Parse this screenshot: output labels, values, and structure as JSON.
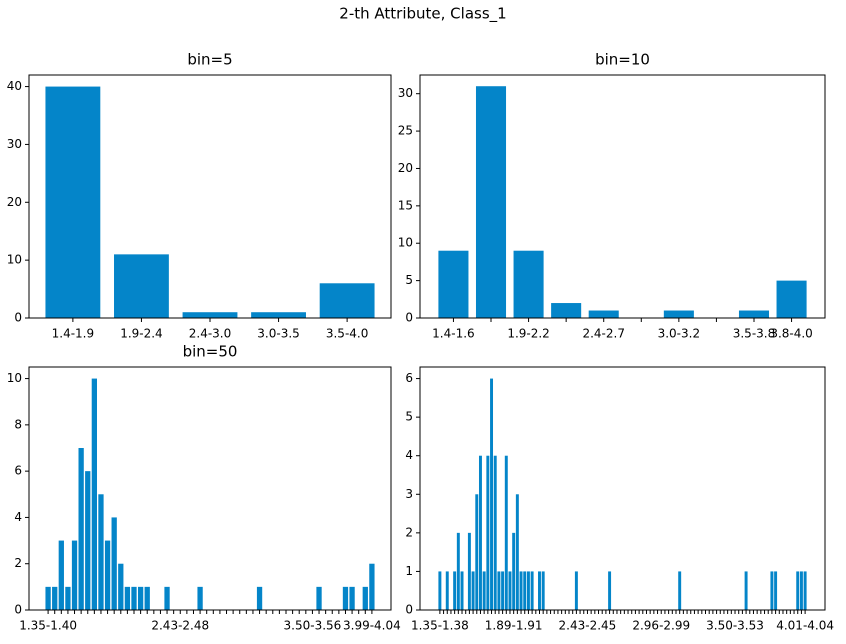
{
  "title": "2-th Attribute, Class_1",
  "chart_data": [
    {
      "type": "bar",
      "title": "bin=5",
      "color": "#0485c9",
      "categories": [
        "1.4-1.9",
        "1.9-2.4",
        "2.4-3.0",
        "3.0-3.5",
        "3.5-4.0"
      ],
      "values": [
        40,
        11,
        1,
        1,
        6
      ],
      "ylim": [
        0,
        42
      ],
      "yticks": [
        0,
        10,
        20,
        30,
        40
      ]
    },
    {
      "type": "bar",
      "title": "bin=10",
      "color": "#0485c9",
      "categories": [
        "1.4-1.6",
        null,
        "1.9-2.2",
        null,
        "2.4-2.7",
        null,
        "3.0-3.2",
        null,
        "3.5-3.8",
        "3.8-4.0"
      ],
      "values": [
        9,
        31,
        9,
        2,
        1,
        0,
        1,
        0,
        1,
        5
      ],
      "ylim": [
        0,
        32.5
      ],
      "yticks": [
        0,
        5,
        10,
        15,
        20,
        25,
        30
      ]
    },
    {
      "type": "bar",
      "title": "bin=50",
      "color": "#0485c9",
      "categories": [
        "1.35-1.40",
        null,
        null,
        null,
        null,
        null,
        null,
        null,
        null,
        null,
        null,
        null,
        null,
        null,
        null,
        null,
        null,
        null,
        null,
        null,
        "2.43-2.48",
        null,
        null,
        null,
        null,
        null,
        null,
        null,
        null,
        null,
        null,
        null,
        null,
        null,
        null,
        null,
        null,
        null,
        null,
        null,
        "3.50-3.56",
        null,
        null,
        null,
        null,
        null,
        null,
        null,
        null,
        "3.99-4.04"
      ],
      "values": [
        1,
        1,
        3,
        1,
        3,
        7,
        6,
        10,
        5,
        3,
        4,
        2,
        1,
        1,
        1,
        1,
        0,
        0,
        1,
        0,
        0,
        0,
        0,
        1,
        0,
        0,
        0,
        0,
        0,
        0,
        0,
        0,
        1,
        0,
        0,
        0,
        0,
        0,
        0,
        0,
        0,
        1,
        0,
        0,
        0,
        1,
        1,
        0,
        1,
        2
      ],
      "ylim": [
        0,
        10.5
      ],
      "yticks": [
        0,
        2,
        4,
        6,
        8,
        10
      ]
    },
    {
      "type": "bar",
      "color": "#0485c9",
      "categories": [
        "1.35-1.38",
        null,
        null,
        null,
        null,
        null,
        null,
        null,
        null,
        null,
        null,
        null,
        null,
        null,
        null,
        null,
        null,
        null,
        null,
        null,
        "1.89-1.91",
        null,
        null,
        null,
        null,
        null,
        null,
        null,
        null,
        null,
        null,
        null,
        null,
        null,
        null,
        null,
        null,
        null,
        null,
        null,
        "2.43-2.45",
        null,
        null,
        null,
        null,
        null,
        null,
        null,
        null,
        null,
        null,
        null,
        null,
        null,
        null,
        null,
        null,
        null,
        null,
        null,
        "2.96-2.99",
        null,
        null,
        null,
        null,
        null,
        null,
        null,
        null,
        null,
        null,
        null,
        null,
        null,
        null,
        null,
        null,
        null,
        null,
        null,
        "3.50-3.53",
        null,
        null,
        null,
        null,
        null,
        null,
        null,
        null,
        null,
        null,
        null,
        null,
        null,
        null,
        null,
        null,
        null,
        null,
        "4.01-4.04"
      ],
      "values": [
        1,
        0,
        1,
        0,
        1,
        2,
        1,
        0,
        2,
        1,
        3,
        4,
        1,
        4,
        6,
        4,
        1,
        1,
        4,
        1,
        2,
        3,
        1,
        1,
        1,
        1,
        0,
        1,
        1,
        0,
        0,
        0,
        0,
        0,
        0,
        0,
        0,
        1,
        0,
        0,
        0,
        0,
        0,
        0,
        0,
        0,
        1,
        0,
        0,
        0,
        0,
        0,
        0,
        0,
        0,
        0,
        0,
        0,
        0,
        0,
        0,
        0,
        0,
        0,
        0,
        1,
        0,
        0,
        0,
        0,
        0,
        0,
        0,
        0,
        0,
        0,
        0,
        0,
        0,
        0,
        0,
        0,
        0,
        1,
        0,
        0,
        0,
        0,
        0,
        0,
        1,
        1,
        0,
        0,
        0,
        0,
        0,
        1,
        1,
        1
      ],
      "ylim": [
        0,
        6.3
      ],
      "yticks": [
        0,
        1,
        2,
        3,
        4,
        5,
        6
      ]
    }
  ]
}
